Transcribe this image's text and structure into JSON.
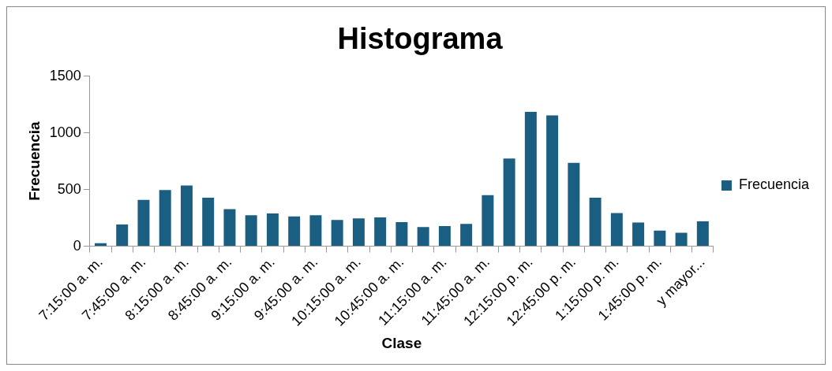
{
  "chart_data": {
    "type": "bar",
    "title": "Histograma",
    "xlabel": "Clase",
    "ylabel": "Frecuencia",
    "categories": [
      "7:15:00 a. m.",
      null,
      "7:45:00 a. m.",
      null,
      "8:15:00 a. m.",
      null,
      "8:45:00 a. m.",
      null,
      "9:15:00 a. m.",
      null,
      "9:45:00 a. m.",
      null,
      "10:15:00 a. m.",
      null,
      "10:45:00 a. m.",
      null,
      "11:15:00 a. m.",
      null,
      "11:45:00 a. m.",
      null,
      "12:15:00 p. m.",
      null,
      "12:45:00 p. m.",
      null,
      "1:15:00 p. m.",
      null,
      "1:45:00 p. m.",
      null,
      "y mayor..."
    ],
    "series": [
      {
        "name": "Frecuencia",
        "color": "#1a5f82",
        "values": [
          27,
          192,
          408,
          496,
          535,
          427,
          327,
          273,
          288,
          262,
          273,
          231,
          246,
          254,
          212,
          169,
          177,
          196,
          450,
          773,
          1185,
          1154,
          735,
          427,
          292,
          208,
          138,
          119,
          219
        ]
      }
    ],
    "ylim": [
      0,
      1500
    ],
    "yticks": [
      0,
      500,
      1000,
      1500
    ],
    "grid": false,
    "legend": "right"
  }
}
